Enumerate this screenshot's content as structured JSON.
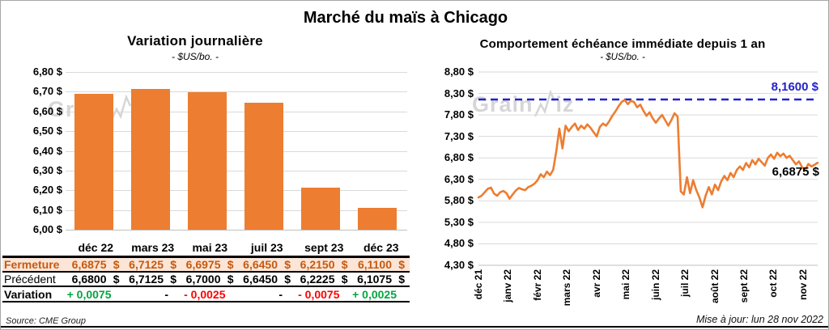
{
  "title": "Marché du maïs à Chicago",
  "source": "Source: CME Group",
  "updated": "Mise à jour: lun 28 nov 2022",
  "watermark": {
    "prefix": "Grain",
    "suffix": "iz"
  },
  "colors": {
    "bar_orange": "#ED7D31",
    "line_orange": "#ED7D31",
    "ref_blue": "#2222CC",
    "grid": "#D9D9D9",
    "axis": "#BFBFBF",
    "fermeture_bg": "#FBE5D6",
    "fermeture_text": "#C55A11",
    "up_green": "#00A640",
    "down_red": "#FF0000"
  },
  "left_chart": {
    "title": "Variation journalière",
    "subtitle": "- $US/bo. -",
    "ytick_labels": [
      "6,80 $",
      "6,70 $",
      "6,60 $",
      "6,50 $",
      "6,40 $",
      "6,30 $",
      "6,20 $",
      "6,10 $",
      "6,00 $"
    ]
  },
  "right_chart": {
    "title": "Comportement échéance immédiate depuis 1 an",
    "subtitle": "- $US/bo. -",
    "ytick_labels": [
      "8,80 $",
      "8,30 $",
      "7,80 $",
      "7,30 $",
      "6,80 $",
      "6,30 $",
      "5,80 $",
      "5,30 $",
      "4,80 $",
      "4,30 $"
    ],
    "ref_label": "8,1600 $",
    "end_label": "6,6875 $"
  },
  "table": {
    "columns": [
      "déc 22",
      "mars 23",
      "mai 23",
      "juil 23",
      "sept 23",
      "déc 23"
    ],
    "currency_symbol": "$",
    "rows": [
      {
        "key": "fermeture",
        "label": "Fermeture",
        "style": "fermeture",
        "values": [
          "6,6875",
          "6,7125",
          "6,6975",
          "6,6450",
          "6,2150",
          "6,1100"
        ],
        "currency": true
      },
      {
        "key": "precedent",
        "label": "Précédent",
        "style": "precedent",
        "values": [
          "6,6800",
          "6,7125",
          "6,7000",
          "6,6450",
          "6,2225",
          "6,1075"
        ],
        "currency": true
      },
      {
        "key": "variation",
        "label": "Variation",
        "style": "variation",
        "values": [
          "+ 0,0075",
          "-",
          "- 0,0025",
          "-",
          "- 0,0075",
          "+ 0,0025"
        ],
        "trend": [
          "up",
          "flat",
          "down",
          "flat",
          "down",
          "up"
        ],
        "currency": false
      }
    ]
  },
  "chart_data": [
    {
      "type": "bar",
      "title": "Variation journalière",
      "subtitle": "- $US/bo. -",
      "categories": [
        "déc 22",
        "mars 23",
        "mai 23",
        "juil 23",
        "sept 23",
        "déc 23"
      ],
      "values": [
        6.6875,
        6.7125,
        6.6975,
        6.645,
        6.215,
        6.11
      ],
      "ylabel": "$US/bo.",
      "ylim": [
        6.0,
        6.8
      ],
      "ytick_step": 0.1,
      "grid": true,
      "legend": "none"
    },
    {
      "type": "line",
      "title": "Comportement échéance immédiate depuis 1 an",
      "subtitle": "- $US/bo. -",
      "x_labels": [
        "déc 21",
        "janv 22",
        "févr 22",
        "mars 22",
        "avr 22",
        "mai 22",
        "juin 22",
        "juil 22",
        "août 22",
        "sept 22",
        "oct 22",
        "nov 22"
      ],
      "ylabel": "$US/bo.",
      "ylim": [
        4.3,
        8.8
      ],
      "ytick_step": 0.5,
      "grid": true,
      "legend": "none",
      "reference_line": {
        "value": 8.16,
        "label": "8,1600 $",
        "style": "dashed"
      },
      "last_value": {
        "value": 6.6875,
        "label": "6,6875 $"
      },
      "values": [
        5.88,
        5.92,
        6.0,
        6.08,
        6.11,
        5.97,
        5.92,
        6.0,
        6.03,
        5.98,
        5.85,
        5.95,
        6.04,
        6.1,
        6.07,
        6.05,
        6.12,
        6.15,
        6.2,
        6.28,
        6.42,
        6.35,
        6.48,
        6.4,
        6.52,
        6.95,
        7.48,
        7.02,
        7.55,
        7.42,
        7.52,
        7.6,
        7.45,
        7.55,
        7.48,
        7.58,
        7.5,
        7.4,
        7.3,
        7.52,
        7.6,
        7.55,
        7.65,
        7.78,
        7.88,
        8.0,
        8.1,
        8.15,
        8.05,
        8.13,
        8.1,
        7.98,
        8.04,
        7.9,
        7.78,
        7.86,
        7.72,
        7.62,
        7.72,
        7.8,
        7.68,
        7.55,
        7.68,
        7.84,
        7.76,
        6.02,
        5.95,
        6.35,
        5.98,
        6.28,
        6.05,
        5.88,
        5.65,
        5.92,
        6.12,
        5.95,
        6.18,
        6.05,
        6.25,
        6.38,
        6.28,
        6.45,
        6.35,
        6.52,
        6.6,
        6.52,
        6.68,
        6.58,
        6.75,
        6.65,
        6.78,
        6.7,
        6.62,
        6.8,
        6.88,
        6.78,
        6.92,
        6.84,
        6.9,
        6.8,
        6.85,
        6.75,
        6.65,
        6.72,
        6.58,
        6.52,
        6.66,
        6.6,
        6.64,
        6.6875
      ]
    }
  ]
}
